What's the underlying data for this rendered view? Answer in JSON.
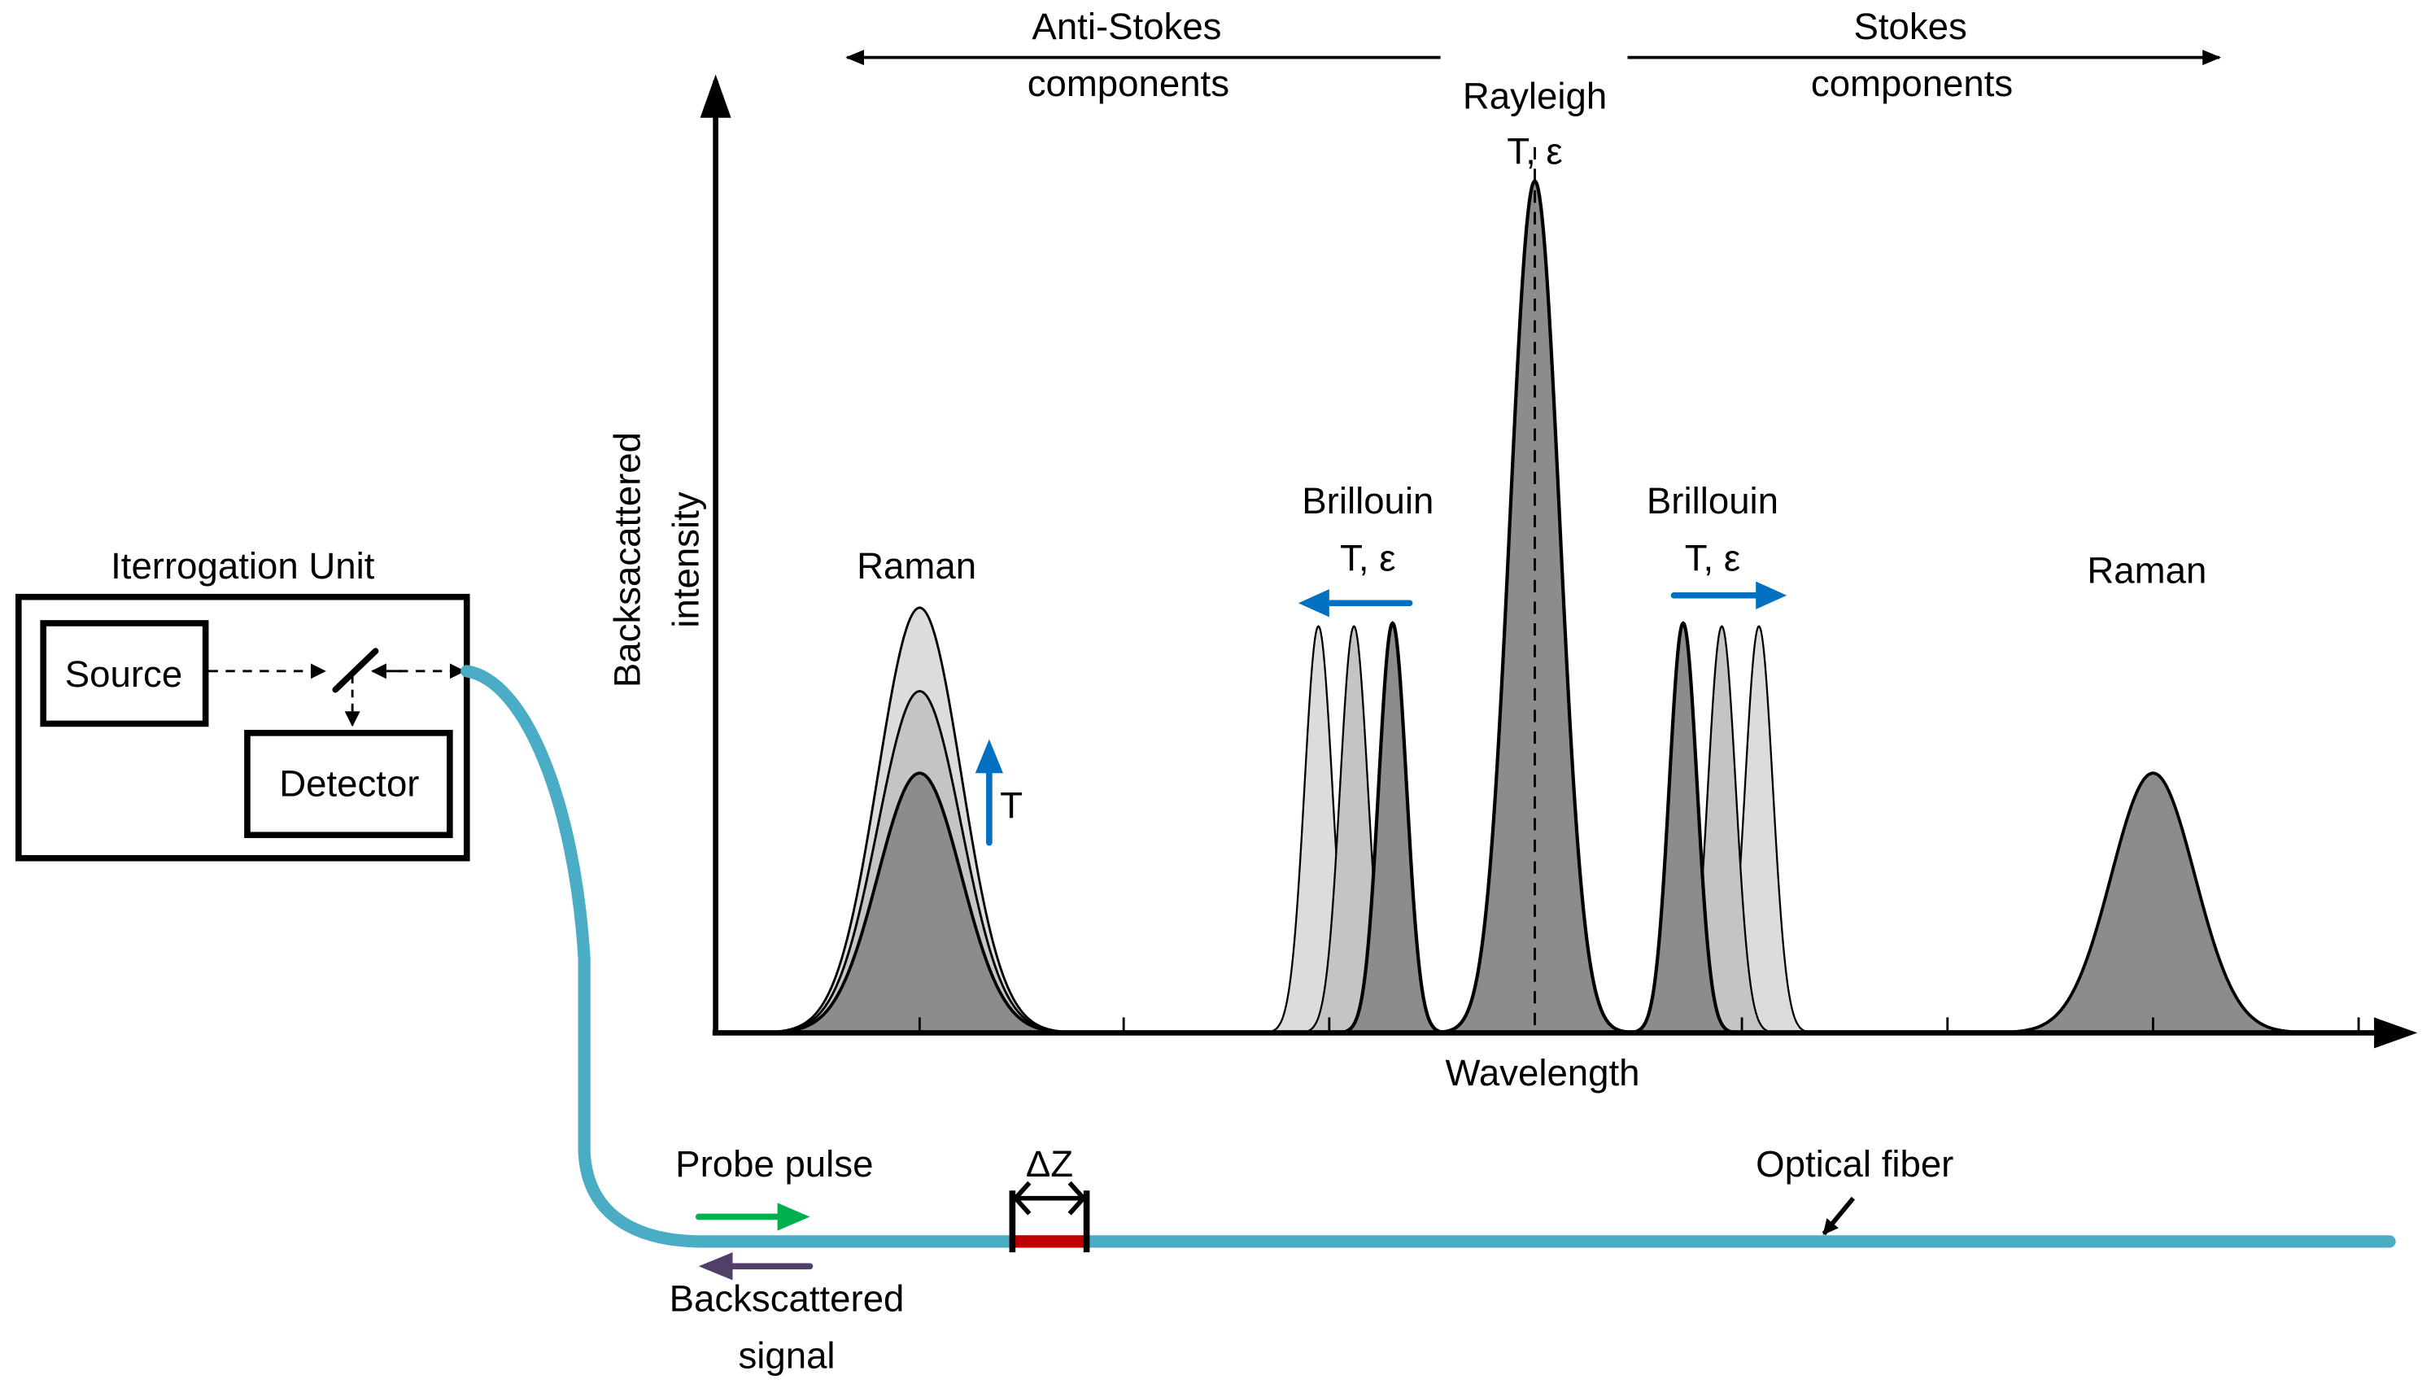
{
  "colors": {
    "fiber": "#4bacc6",
    "shift_arrow": "#0070c0",
    "probe_pulse_arrow": "#00b050",
    "backscatter_arrow": "#513f6a",
    "spatial_resolution_segment": "#c00000",
    "peak_dark": "#8c8c8c",
    "peak_mid": "#c4c4c4",
    "peak_light": "#dcdcdc"
  },
  "spectrum": {
    "anti_stokes_line1": "Anti-Stokes",
    "anti_stokes_line2": "components",
    "stokes_line1": "Stokes",
    "stokes_line2": "components",
    "rayleigh_label": "Rayleigh",
    "rayleigh_sensitivity": "T, ε",
    "brillouin_left_label": "Brillouin",
    "brillouin_left_sensitivity": "T, ε",
    "brillouin_right_label": "Brillouin",
    "brillouin_right_sensitivity": "T, ε",
    "raman_left_label": "Raman",
    "raman_left_sensitivity": "T",
    "raman_right_label": "Raman",
    "ylabel_line1": "Backsacattered",
    "ylabel_line2": "intensity",
    "xlabel": "Wavelength"
  },
  "interrogation_unit": {
    "title": "Iterrogation Unit",
    "source": "Source",
    "detector": "Detector"
  },
  "fiber": {
    "probe_pulse": "Probe pulse",
    "backscattered_line1": "Backscattered",
    "backscattered_line2": "signal",
    "delta_z": "ΔZ",
    "optical_fiber": "Optical fiber"
  }
}
